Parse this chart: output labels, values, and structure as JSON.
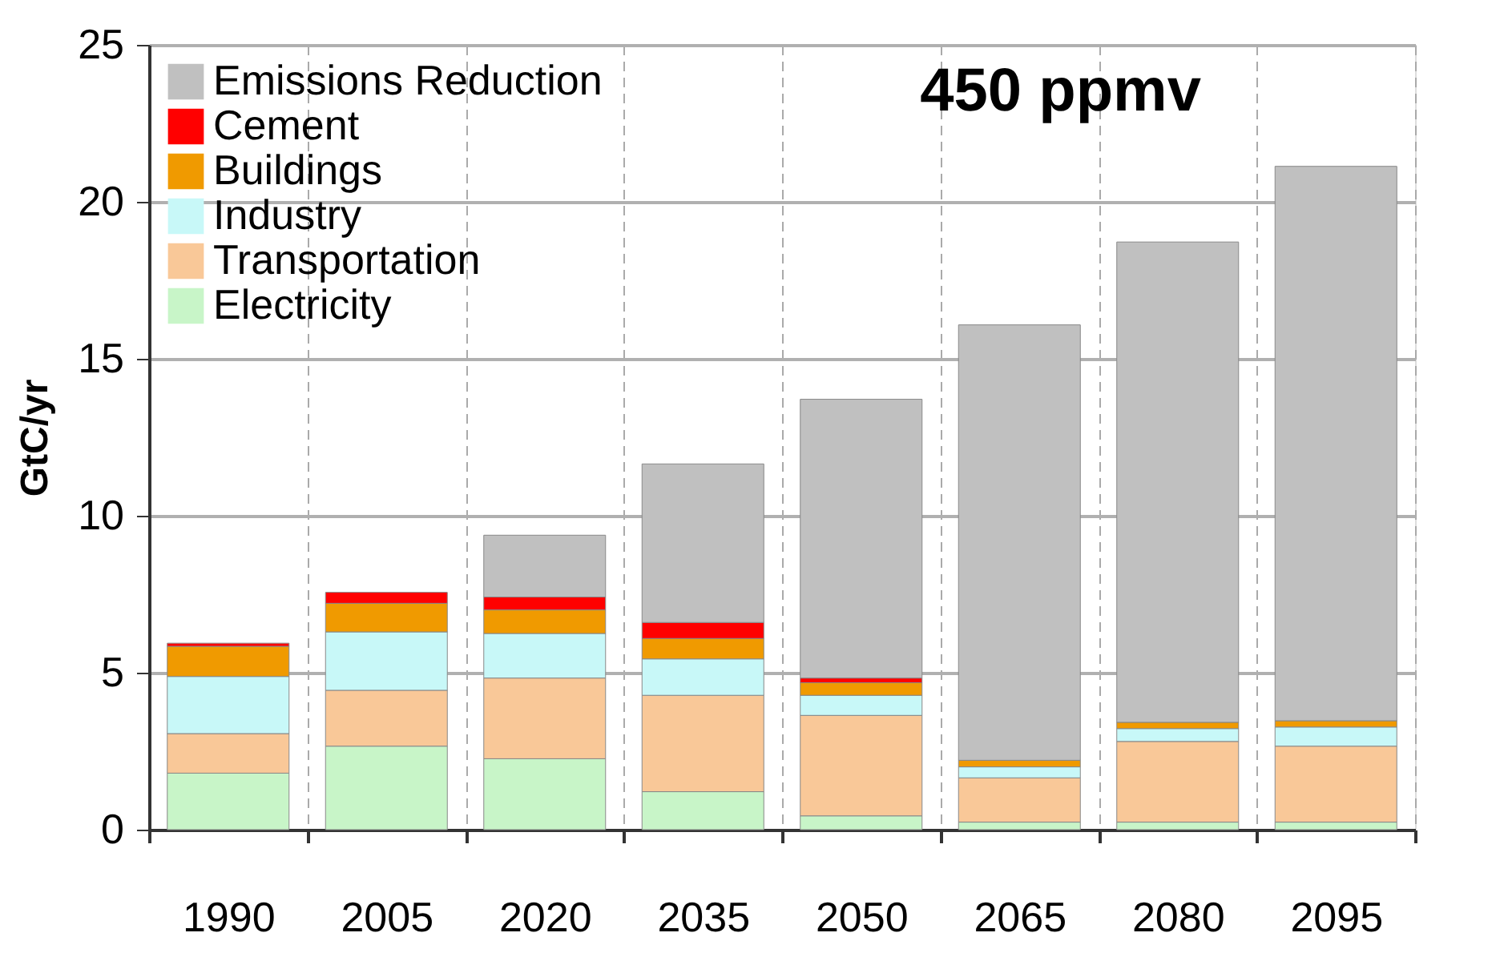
{
  "chart_data": {
    "type": "bar",
    "stacked": true,
    "ylabel": "GtC/yr",
    "categories": [
      "1990",
      "2005",
      "2020",
      "2035",
      "2050",
      "2065",
      "2080",
      "2095"
    ],
    "series": [
      {
        "name": "Electricity",
        "color": "#c8f5c8",
        "values": [
          1.8,
          2.66,
          2.26,
          1.21,
          0.44,
          0.24,
          0.24,
          0.24
        ]
      },
      {
        "name": "Transportation",
        "color": "#f9c898",
        "values": [
          1.26,
          1.78,
          2.57,
          3.07,
          3.2,
          1.41,
          2.57,
          2.42
        ]
      },
      {
        "name": "Industry",
        "color": "#c8f8f8",
        "values": [
          1.82,
          1.86,
          1.42,
          1.16,
          0.64,
          0.35,
          0.41,
          0.61
        ]
      },
      {
        "name": "Buildings",
        "color": "#f09a00",
        "values": [
          0.96,
          0.91,
          0.75,
          0.65,
          0.4,
          0.21,
          0.2,
          0.2
        ]
      },
      {
        "name": "Cement",
        "color": "#ff0000",
        "values": [
          0.1,
          0.35,
          0.41,
          0.51,
          0.15,
          null,
          null,
          null
        ]
      },
      {
        "name": "Emissions Reduction",
        "color": "#c0c0c0",
        "values": [
          null,
          null,
          1.97,
          5.05,
          8.88,
          13.87,
          15.3,
          17.66
        ]
      }
    ],
    "ylim": [
      0,
      25
    ],
    "yticks": [
      0,
      5,
      10,
      15,
      20,
      25
    ],
    "grid": true,
    "legend": "top left",
    "annotations": [
      "450 ppmv"
    ]
  }
}
